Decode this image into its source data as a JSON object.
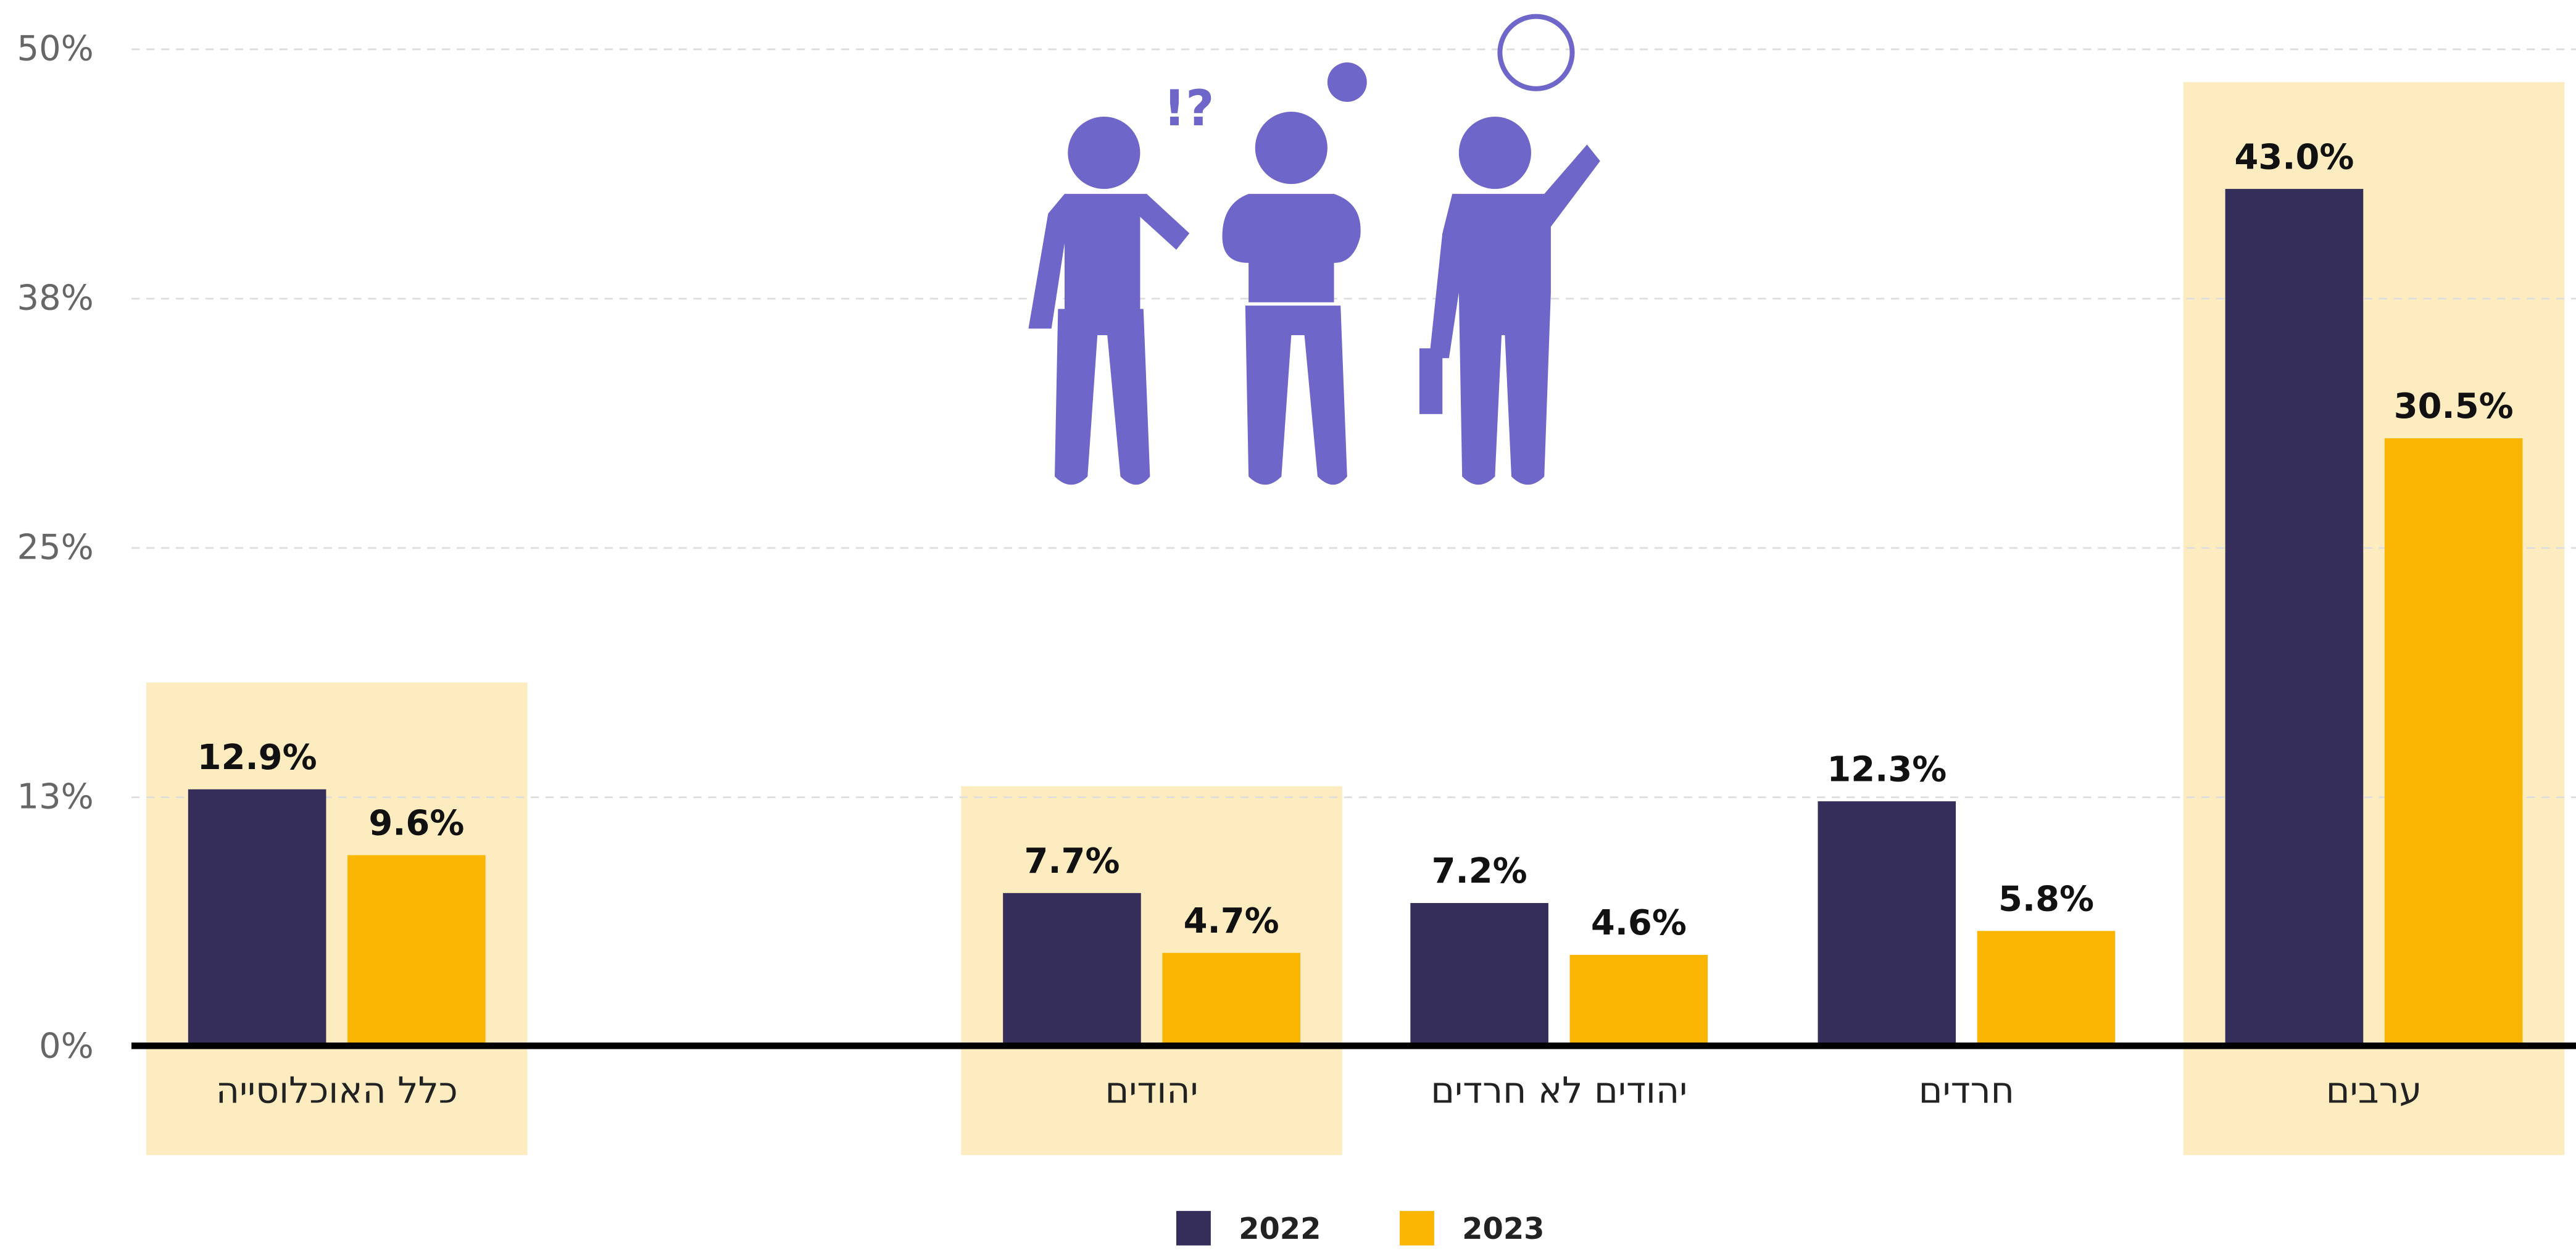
{
  "chart_data": {
    "type": "bar",
    "categories": [
      "כלל האוכלוסייה",
      null,
      "יהודים",
      "יהודים לא חרדים",
      "חרדים",
      "ערבים"
    ],
    "highlight": [
      true,
      false,
      true,
      false,
      false,
      true
    ],
    "series": [
      {
        "name": "2022",
        "color": "#352e5a",
        "values": [
          12.9,
          null,
          7.7,
          7.2,
          12.3,
          43.0
        ],
        "value_labels": [
          "12.9%",
          null,
          "7.7%",
          "7.2%",
          "12.3%",
          "43.0%"
        ]
      },
      {
        "name": "2023",
        "color": "#fbb604",
        "values": [
          9.6,
          null,
          4.7,
          4.6,
          5.8,
          30.5
        ],
        "value_labels": [
          "9.6%",
          null,
          "4.7%",
          "4.6%",
          "5.8%",
          "30.5%"
        ]
      }
    ],
    "ylim": [
      0,
      50
    ],
    "yticks": [
      {
        "value": 0,
        "label": "0%"
      },
      {
        "value": 12.5,
        "label": "13%"
      },
      {
        "value": 25,
        "label": "25%"
      },
      {
        "value": 37.5,
        "label": "38%"
      },
      {
        "value": 50,
        "label": "50%"
      }
    ],
    "grid": true,
    "legend": "bottom"
  }
}
